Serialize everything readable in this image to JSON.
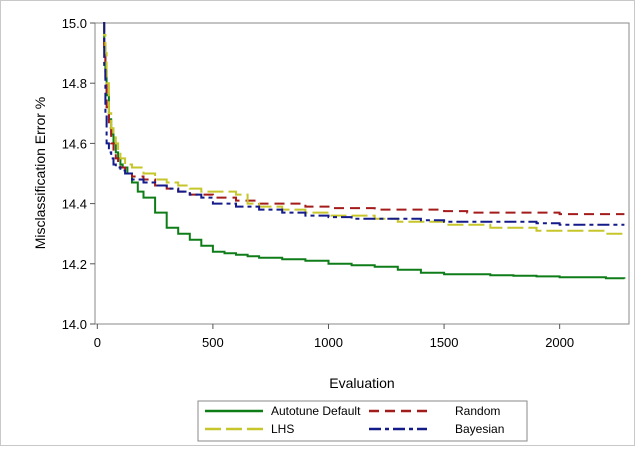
{
  "chart_data": {
    "type": "line",
    "title": "",
    "xlabel": "Evaluation",
    "ylabel": "Misclassification Error %",
    "xlim": [
      -10,
      2300
    ],
    "ylim": [
      14.0,
      15.0
    ],
    "x_ticks": [
      0,
      500,
      1000,
      1500,
      2000
    ],
    "y_ticks": [
      14.0,
      14.2,
      14.4,
      14.6,
      14.8,
      15.0
    ],
    "x_tick_labels": [
      "0",
      "500",
      "1000",
      "1500",
      "2000"
    ],
    "y_tick_labels": [
      "14.0",
      "14.2",
      "14.4",
      "14.6",
      "14.8",
      "15.0"
    ],
    "grid": false,
    "legend_position": "bottom",
    "series": [
      {
        "name": "Autotune Default",
        "color": "#0e7d18",
        "dash": "solid",
        "x": [
          25,
          30,
          35,
          40,
          50,
          60,
          70,
          80,
          90,
          100,
          110,
          130,
          150,
          175,
          200,
          250,
          300,
          350,
          400,
          450,
          500,
          550,
          600,
          650,
          700,
          800,
          900,
          1000,
          1100,
          1200,
          1300,
          1400,
          1500,
          1600,
          1700,
          1800,
          1900,
          2000,
          2100,
          2200,
          2280
        ],
        "y": [
          15.0,
          14.93,
          14.84,
          14.76,
          14.68,
          14.63,
          14.6,
          14.57,
          14.55,
          14.53,
          14.52,
          14.5,
          14.47,
          14.44,
          14.42,
          14.37,
          14.32,
          14.3,
          14.28,
          14.26,
          14.24,
          14.235,
          14.23,
          14.225,
          14.22,
          14.215,
          14.21,
          14.2,
          14.195,
          14.19,
          14.18,
          14.17,
          14.165,
          14.165,
          14.162,
          14.16,
          14.158,
          14.155,
          14.155,
          14.152,
          14.15
        ]
      },
      {
        "name": "Random",
        "color": "#a41b1b",
        "dash": "dashed",
        "x": [
          25,
          30,
          35,
          40,
          50,
          60,
          70,
          80,
          90,
          100,
          120,
          150,
          200,
          250,
          300,
          350,
          400,
          500,
          600,
          700,
          800,
          900,
          1000,
          1100,
          1200,
          1300,
          1400,
          1500,
          1600,
          1700,
          1800,
          1900,
          2000,
          2100,
          2200,
          2280
        ],
        "y": [
          15.0,
          14.92,
          14.82,
          14.72,
          14.65,
          14.6,
          14.57,
          14.55,
          14.53,
          14.52,
          14.5,
          14.49,
          14.48,
          14.46,
          14.45,
          14.44,
          14.43,
          14.42,
          14.41,
          14.4,
          14.4,
          14.39,
          14.385,
          14.385,
          14.38,
          14.38,
          14.38,
          14.375,
          14.37,
          14.37,
          14.37,
          14.37,
          14.365,
          14.365,
          14.365,
          14.365
        ]
      },
      {
        "name": "LHS",
        "color": "#c6c62a",
        "dash": "longdash",
        "x": [
          25,
          30,
          35,
          40,
          50,
          60,
          70,
          80,
          90,
          100,
          120,
          150,
          200,
          250,
          300,
          350,
          400,
          450,
          500,
          550,
          600,
          650,
          700,
          800,
          900,
          1000,
          1100,
          1200,
          1300,
          1400,
          1500,
          1600,
          1700,
          1800,
          1900,
          2000,
          2100,
          2200,
          2280
        ],
        "y": [
          15.0,
          14.96,
          14.9,
          14.8,
          14.7,
          14.65,
          14.62,
          14.6,
          14.57,
          14.55,
          14.53,
          14.52,
          14.5,
          14.48,
          14.47,
          14.46,
          14.45,
          14.44,
          14.44,
          14.44,
          14.43,
          14.4,
          14.39,
          14.38,
          14.37,
          14.36,
          14.36,
          14.35,
          14.34,
          14.34,
          14.33,
          14.33,
          14.32,
          14.32,
          14.31,
          14.31,
          14.31,
          14.3,
          14.3
        ]
      },
      {
        "name": "Bayesian",
        "color": "#131a8a",
        "dash": "dashdot",
        "x": [
          25,
          30,
          35,
          40,
          50,
          60,
          70,
          80,
          90,
          100,
          120,
          150,
          200,
          250,
          300,
          350,
          400,
          450,
          500,
          600,
          700,
          800,
          900,
          1000,
          1100,
          1200,
          1300,
          1400,
          1500,
          1600,
          1700,
          1800,
          1900,
          2000,
          2100,
          2200,
          2280
        ],
        "y": [
          15.0,
          14.85,
          14.7,
          14.6,
          14.57,
          14.55,
          14.53,
          14.52,
          14.52,
          14.51,
          14.5,
          14.48,
          14.47,
          14.46,
          14.45,
          14.44,
          14.43,
          14.42,
          14.4,
          14.39,
          14.38,
          14.37,
          14.36,
          14.355,
          14.35,
          14.35,
          14.35,
          14.345,
          14.34,
          14.34,
          14.34,
          14.34,
          14.335,
          14.33,
          14.33,
          14.33,
          14.33
        ]
      }
    ]
  }
}
